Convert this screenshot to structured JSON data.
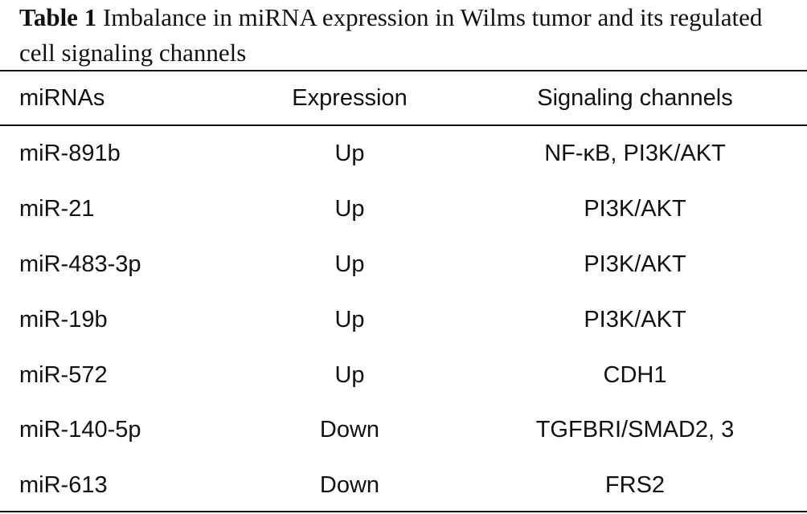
{
  "caption": {
    "label": "Table 1",
    "text": "Imbalance in miRNA expression in Wilms tumor and its regulated cell signaling channels"
  },
  "table": {
    "headers": [
      "miRNAs",
      "Expression",
      "Signaling channels"
    ],
    "rows": [
      [
        "miR-891b",
        "Up",
        "NF-κB, PI3K/AKT"
      ],
      [
        "miR-21",
        "Up",
        "PI3K/AKT"
      ],
      [
        "miR-483-3p",
        "Up",
        "PI3K/AKT"
      ],
      [
        "miR-19b",
        "Up",
        "PI3K/AKT"
      ],
      [
        "miR-572",
        "Up",
        "CDH1"
      ],
      [
        "miR-140-5p",
        "Down",
        "TGFBRI/SMAD2, 3"
      ],
      [
        "miR-613",
        "Down",
        "FRS2"
      ]
    ]
  }
}
